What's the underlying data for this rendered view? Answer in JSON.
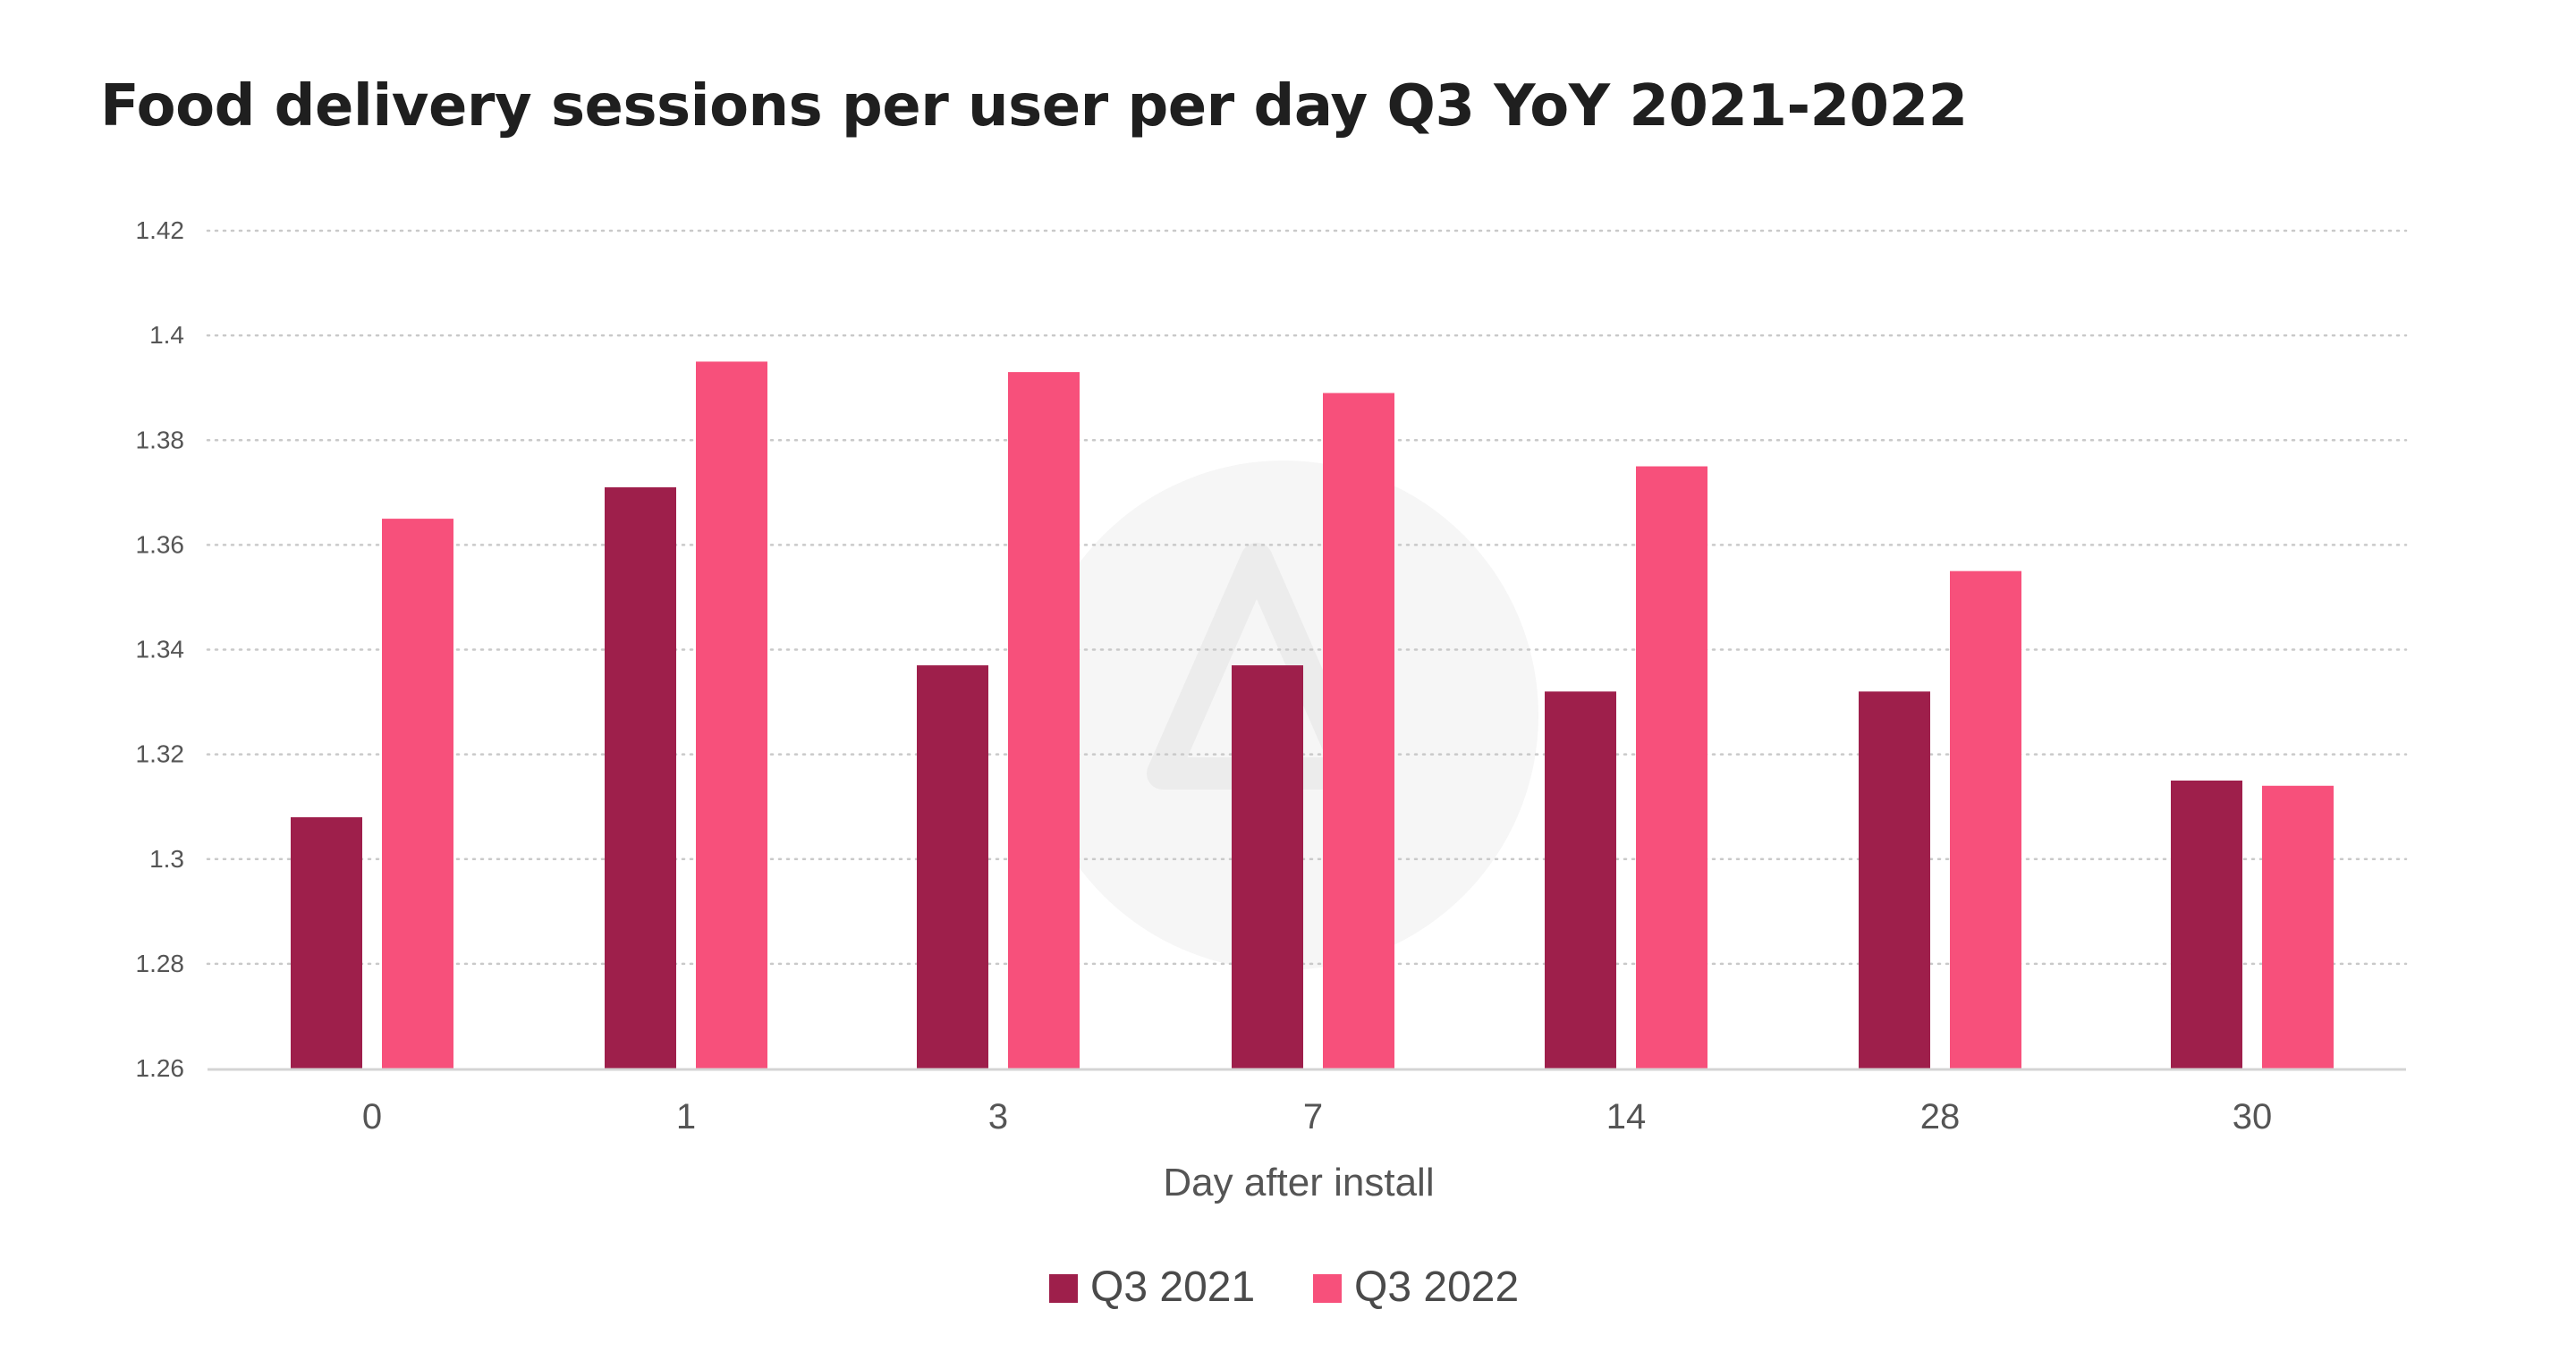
{
  "chart_data": {
    "type": "bar",
    "title": "Food delivery sessions per user per day Q3 YoY 2021-2022",
    "xlabel": "Day after install",
    "ylabel": "",
    "categories": [
      "0",
      "1",
      "3",
      "7",
      "14",
      "28",
      "30"
    ],
    "ylim": [
      1.26,
      1.42
    ],
    "yticks": [
      "1.26",
      "1.28",
      "1.3",
      "1.32",
      "1.34",
      "1.36",
      "1.38",
      "1.4",
      "1.42"
    ],
    "grid": true,
    "legend_position": "bottom-center",
    "series": [
      {
        "name": "Q3 2021",
        "color": "#9e1f4b",
        "values": [
          1.308,
          1.371,
          1.337,
          1.337,
          1.332,
          1.332,
          1.315
        ]
      },
      {
        "name": "Q3 2022",
        "color": "#f7507b",
        "values": [
          1.365,
          1.395,
          1.393,
          1.389,
          1.375,
          1.355,
          1.314
        ]
      }
    ]
  }
}
